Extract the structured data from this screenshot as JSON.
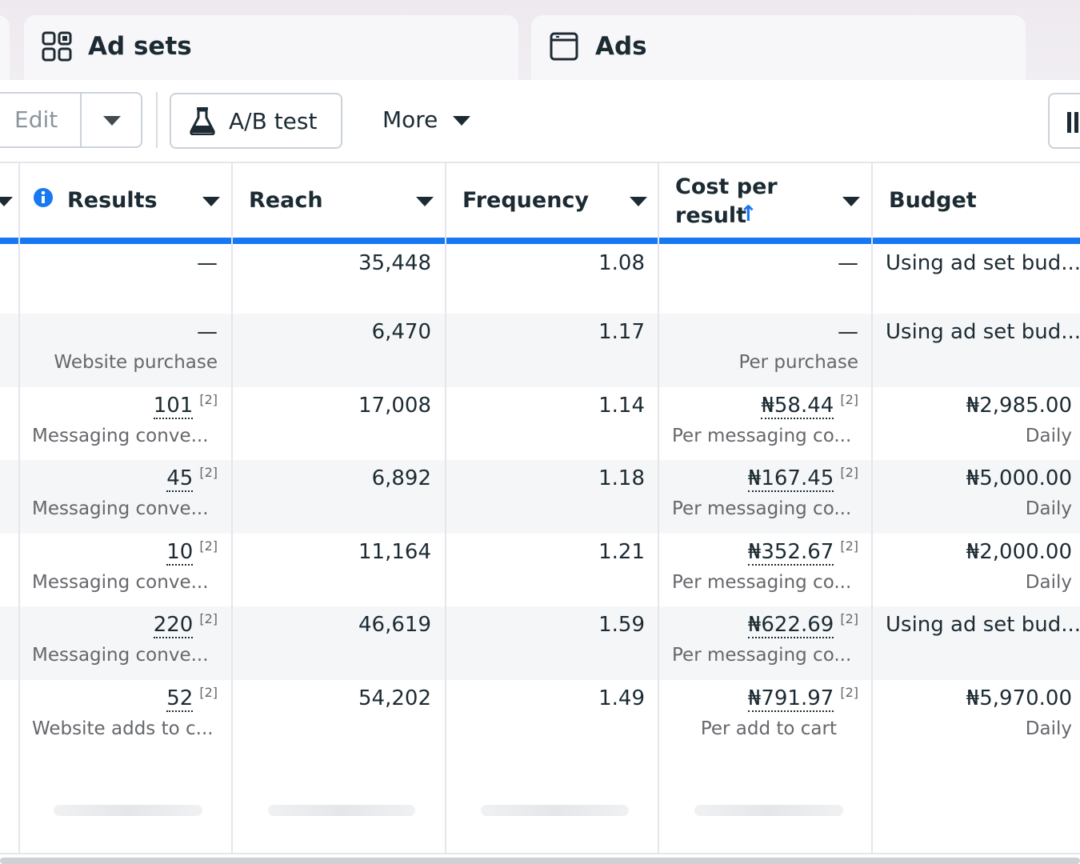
{
  "tabs": [
    {
      "label": "Ad sets",
      "icon": "grid-icon"
    },
    {
      "label": "Ads",
      "icon": "ad-window-icon"
    }
  ],
  "toolbar": {
    "edit_label": "Edit",
    "ab_test_label": "A/B test",
    "more_label": "More"
  },
  "columns": {
    "results": "Results",
    "reach": "Reach",
    "frequency": "Frequency",
    "cost_per_result_line1": "Cost per",
    "cost_per_result_line2": "result",
    "budget": "Budget",
    "sort_arrow": "↑"
  },
  "footnote": "[2]",
  "rows": [
    {
      "result": "—",
      "result_sub": "",
      "reach": "35,448",
      "frequency": "1.08",
      "cost": "—",
      "cost_sub": "",
      "budget": "Using ad set bud...",
      "budget_sub": ""
    },
    {
      "result": "—",
      "result_sub": "Website purchase",
      "reach": "6,470",
      "frequency": "1.17",
      "cost": "—",
      "cost_sub": "Per purchase",
      "budget": "Using ad set bud...",
      "budget_sub": ""
    },
    {
      "result": "101",
      "result_sub": "Messaging conve...",
      "reach": "17,008",
      "frequency": "1.14",
      "cost": "₦58.44",
      "cost_sub": "Per messaging co...",
      "budget": "₦2,985.00",
      "budget_sub": "Daily"
    },
    {
      "result": "45",
      "result_sub": "Messaging conve...",
      "reach": "6,892",
      "frequency": "1.18",
      "cost": "₦167.45",
      "cost_sub": "Per messaging co...",
      "budget": "₦5,000.00",
      "budget_sub": "Daily"
    },
    {
      "result": "10",
      "result_sub": "Messaging conve...",
      "reach": "11,164",
      "frequency": "1.21",
      "cost": "₦352.67",
      "cost_sub": "Per messaging co...",
      "budget": "₦2,000.00",
      "budget_sub": "Daily"
    },
    {
      "result": "220",
      "result_sub": "Messaging conve...",
      "reach": "46,619",
      "frequency": "1.59",
      "cost": "₦622.69",
      "cost_sub": "Per messaging co...",
      "budget": "Using ad set bud...",
      "budget_sub": ""
    },
    {
      "result": "52",
      "result_sub": "Website adds to c...",
      "reach": "54,202",
      "frequency": "1.49",
      "cost": "₦791.97",
      "cost_sub": "Per add to cart",
      "budget": "₦5,970.00",
      "budget_sub": "Daily"
    }
  ]
}
